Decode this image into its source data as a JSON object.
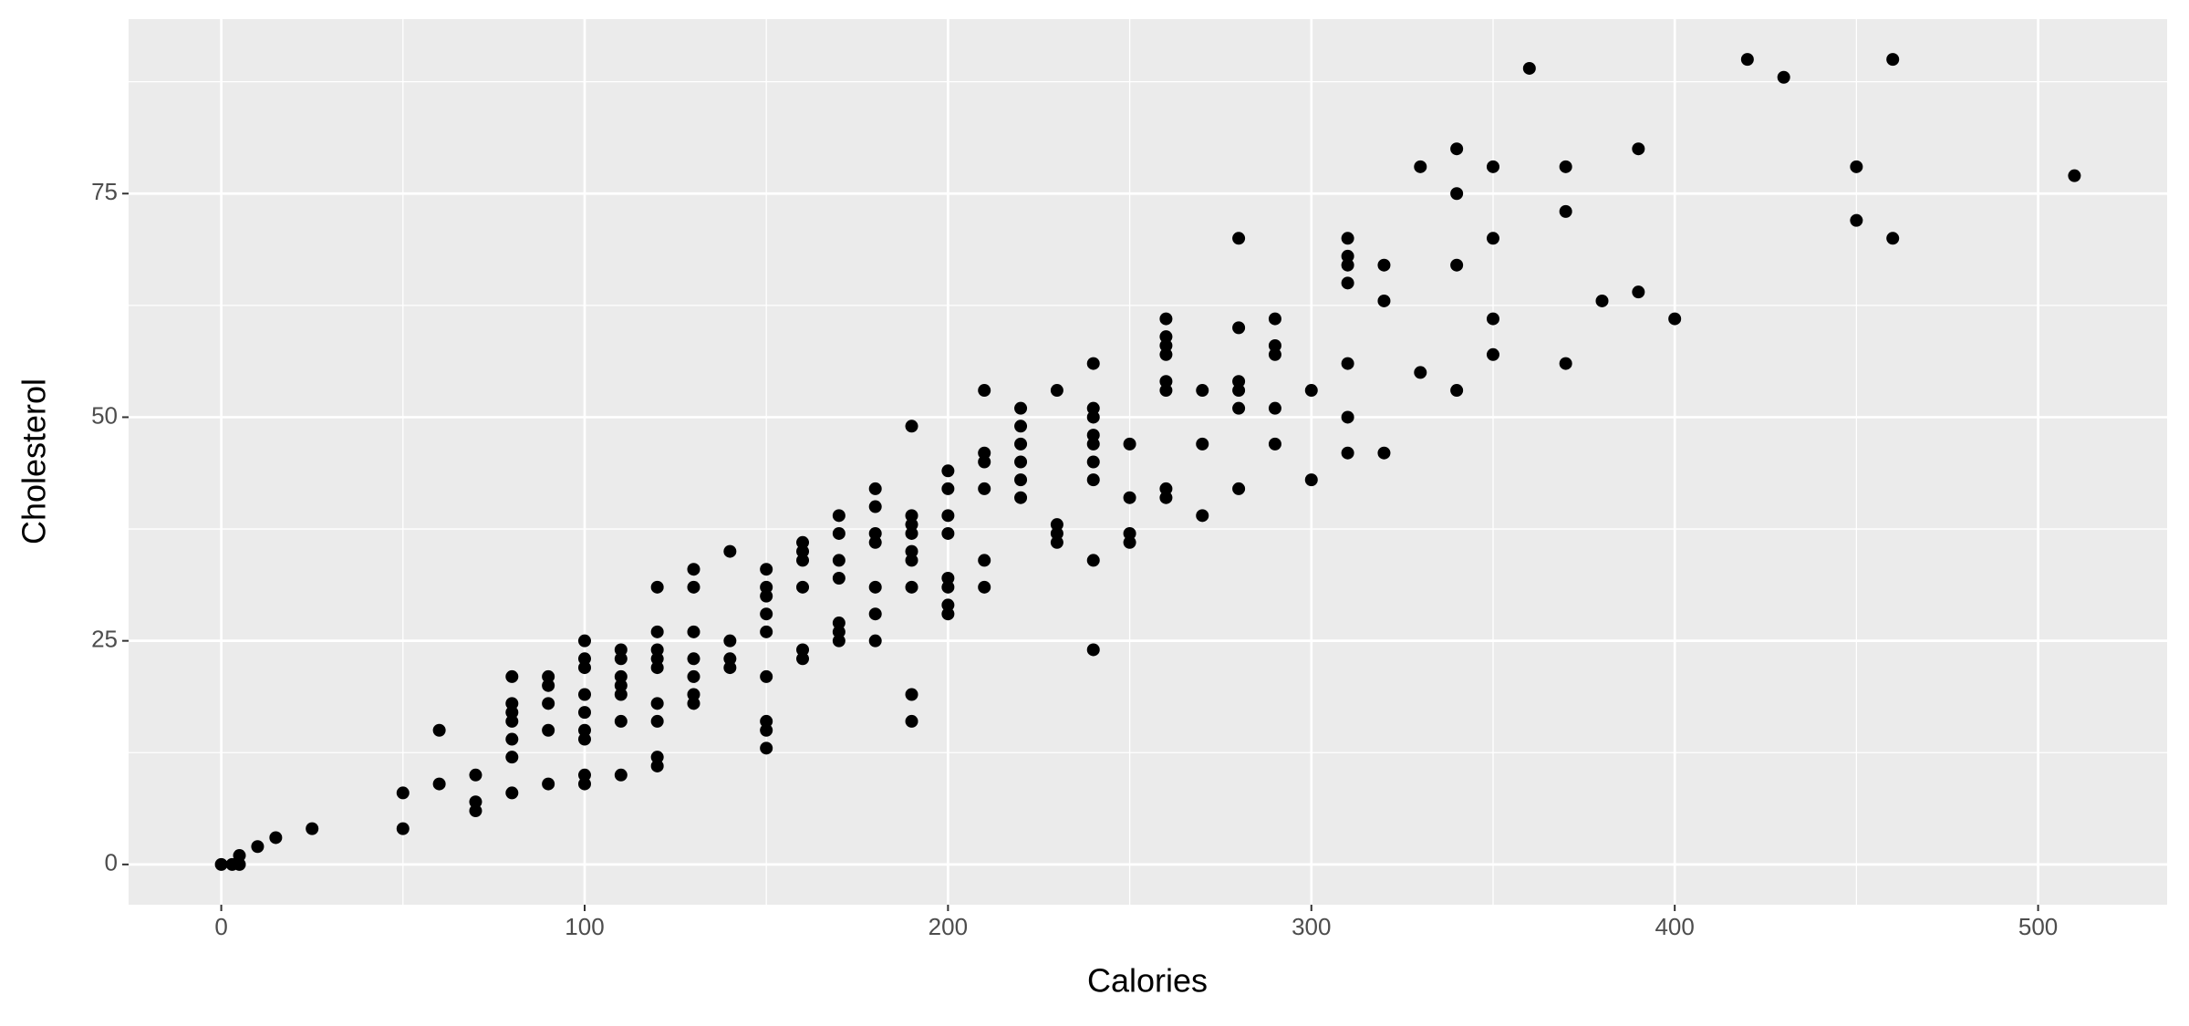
{
  "chart_data": {
    "type": "scatter",
    "x_label": "Calories",
    "y_label": "Cholesterol",
    "x": [
      0,
      3,
      5,
      5,
      10,
      15,
      25,
      50,
      50,
      60,
      60,
      70,
      70,
      70,
      80,
      80,
      80,
      80,
      80,
      80,
      80,
      90,
      90,
      90,
      90,
      90,
      100,
      100,
      100,
      100,
      100,
      100,
      100,
      100,
      100,
      110,
      110,
      110,
      110,
      110,
      110,
      110,
      120,
      120,
      120,
      120,
      120,
      120,
      120,
      120,
      120,
      130,
      130,
      130,
      130,
      130,
      130,
      130,
      140,
      140,
      140,
      140,
      150,
      150,
      150,
      150,
      150,
      150,
      150,
      150,
      150,
      160,
      160,
      160,
      160,
      160,
      160,
      170,
      170,
      170,
      170,
      170,
      170,
      170,
      180,
      180,
      180,
      180,
      180,
      180,
      180,
      190,
      190,
      190,
      190,
      190,
      190,
      190,
      190,
      190,
      200,
      200,
      200,
      200,
      200,
      200,
      200,
      200,
      210,
      210,
      210,
      210,
      210,
      210,
      220,
      220,
      220,
      220,
      220,
      220,
      230,
      230,
      230,
      230,
      240,
      240,
      240,
      240,
      240,
      240,
      240,
      240,
      240,
      250,
      250,
      250,
      250,
      260,
      260,
      260,
      260,
      260,
      260,
      260,
      260,
      270,
      270,
      270,
      280,
      280,
      280,
      280,
      280,
      280,
      290,
      290,
      290,
      290,
      290,
      300,
      300,
      310,
      310,
      310,
      310,
      310,
      310,
      310,
      320,
      320,
      320,
      330,
      330,
      340,
      340,
      340,
      340,
      350,
      350,
      350,
      350,
      360,
      370,
      370,
      370,
      380,
      390,
      390,
      400,
      420,
      430,
      450,
      450,
      460,
      460,
      510
    ],
    "values": [
      0,
      0,
      0,
      1,
      2,
      3,
      4,
      8,
      4,
      15,
      9,
      10,
      7,
      6,
      21,
      18,
      17,
      16,
      14,
      12,
      8,
      21,
      20,
      18,
      15,
      9,
      25,
      23,
      22,
      19,
      17,
      15,
      14,
      10,
      9,
      24,
      23,
      21,
      20,
      19,
      16,
      10,
      31,
      26,
      24,
      23,
      22,
      18,
      16,
      12,
      11,
      33,
      31,
      26,
      23,
      21,
      19,
      18,
      35,
      25,
      23,
      22,
      33,
      31,
      30,
      28,
      26,
      21,
      16,
      15,
      13,
      36,
      35,
      34,
      31,
      24,
      23,
      39,
      37,
      34,
      32,
      27,
      26,
      25,
      42,
      40,
      37,
      36,
      31,
      28,
      25,
      49,
      39,
      38,
      37,
      35,
      34,
      31,
      19,
      16,
      44,
      42,
      39,
      37,
      32,
      31,
      29,
      28,
      53,
      46,
      45,
      42,
      34,
      31,
      51,
      49,
      47,
      45,
      43,
      41,
      53,
      38,
      37,
      36,
      56,
      51,
      50,
      48,
      47,
      45,
      43,
      34,
      24,
      47,
      41,
      37,
      36,
      61,
      59,
      58,
      57,
      54,
      53,
      42,
      41,
      53,
      47,
      39,
      70,
      60,
      54,
      53,
      51,
      42,
      61,
      58,
      57,
      51,
      47,
      53,
      43,
      70,
      68,
      67,
      65,
      56,
      50,
      46,
      67,
      63,
      46,
      78,
      55,
      80,
      75,
      67,
      53,
      78,
      70,
      61,
      57,
      89,
      78,
      73,
      56,
      63,
      80,
      64,
      61,
      90,
      88,
      78,
      72,
      90,
      70,
      77
    ],
    "color": "#000000",
    "xlim": [
      -25.5,
      535.5
    ],
    "xticks": [
      0,
      100,
      200,
      300,
      400,
      500
    ],
    "xminor": [
      50,
      150,
      250,
      350,
      450
    ],
    "ylim": [
      -4.5,
      94.5
    ],
    "yticks": [
      0,
      25,
      50,
      75
    ],
    "yminor": [
      12.5,
      37.5,
      62.5,
      87.5
    ],
    "grid": true
  }
}
